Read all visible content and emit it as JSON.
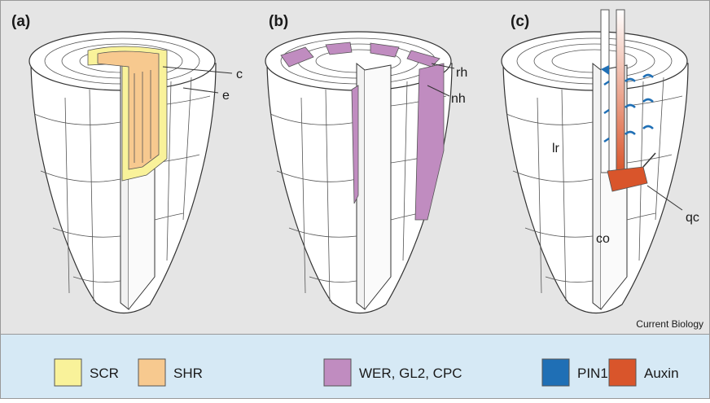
{
  "panels": [
    {
      "label": "(a)",
      "annotations": [
        "c",
        "e"
      ]
    },
    {
      "label": "(b)",
      "annotations": [
        "rh",
        "nh"
      ]
    },
    {
      "label": "(c)",
      "annotations": [
        "lr",
        "co",
        "qc"
      ]
    }
  ],
  "credit": "Current Biology",
  "legend": [
    {
      "label": "SCR",
      "color": "#f9f29a"
    },
    {
      "label": "SHR",
      "color": "#f7c98f"
    },
    {
      "label": "WER, GL2, CPC",
      "color": "#c08cc0"
    },
    {
      "label": "PIN1",
      "color": "#1f6fb5"
    },
    {
      "label": "Auxin",
      "color": "#d9552b"
    }
  ]
}
